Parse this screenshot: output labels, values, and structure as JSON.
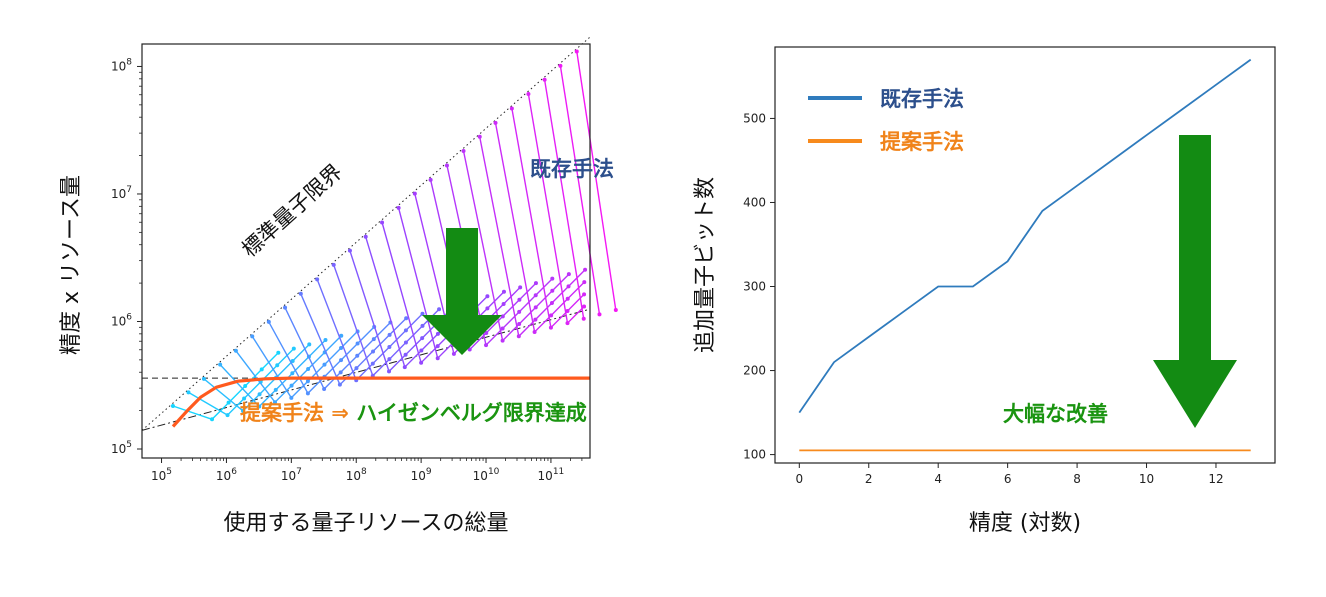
{
  "chart_data": [
    {
      "type": "line",
      "xlabel": "使用する量子リソースの総量",
      "ylabel": "精度 x リソース量",
      "xscale": "log",
      "yscale": "log",
      "xlim": [
        50000,
        400000000000
      ],
      "ylim": [
        85000,
        150000000
      ],
      "x_ticks": [
        100000,
        1000000,
        10000000,
        100000000,
        1000000000,
        10000000000,
        100000000000
      ],
      "x_tick_labels": [
        {
          "base": "10",
          "exp": "5"
        },
        {
          "base": "10",
          "exp": "6"
        },
        {
          "base": "10",
          "exp": "7"
        },
        {
          "base": "10",
          "exp": "8"
        },
        {
          "base": "10",
          "exp": "9"
        },
        {
          "base": "10",
          "exp": "10"
        },
        {
          "base": "10",
          "exp": "11"
        }
      ],
      "y_ticks": [
        100000,
        1000000,
        10000000,
        100000000
      ],
      "y_tick_labels": [
        {
          "base": "10",
          "exp": "5"
        },
        {
          "base": "10",
          "exp": "6"
        },
        {
          "base": "10",
          "exp": "7"
        },
        {
          "base": "10",
          "exp": "8"
        }
      ],
      "reference_lines": [
        {
          "style": "dotted",
          "x": [
            50000,
            400000000000
          ],
          "y": [
            140000,
            170000000
          ]
        },
        {
          "style": "dashdot",
          "x": [
            50000,
            400000000000
          ],
          "y": [
            140000,
            1250000
          ]
        },
        {
          "style": "dashed",
          "x": [
            50000,
            400000000000
          ],
          "y": [
            360000,
            360000
          ]
        }
      ],
      "series": [
        {
          "color": "#ff5a1e",
          "x": [
            150000,
            250000,
            400000,
            700000,
            1500000,
            4000000,
            10000000,
            100000000,
            1000000000,
            10000000000,
            100000000000,
            400000000000
          ],
          "y": [
            150000,
            200000,
            255000,
            305000,
            340000,
            355000,
            360000,
            360000,
            360000,
            360000,
            360000,
            360000
          ]
        }
      ],
      "existing_method_tip_x": [
        150000,
        260000,
        450000,
        800000,
        1400000,
        2500000,
        4500000,
        8000000,
        14000000,
        25000000,
        45000000,
        80000000,
        140000000,
        250000000,
        450000000,
        800000000,
        1400000000,
        2500000000,
        4500000000,
        8000000000,
        14000000000,
        25000000000,
        45000000000,
        80000000000,
        140000000000,
        250000000000
      ],
      "existing_method_colors": [
        "#17d5ff",
        "#9148ff",
        "#f418f4"
      ],
      "annotations": {
        "sql_label": "標準量子限界",
        "existing_label": "既存手法",
        "proposed_label": "提案手法 ⇒ ハイゼンベルグ限界達成"
      },
      "colors": {
        "existing_text": "#2c4f8c",
        "proposed_text": "#f0831a",
        "heisenberg_text": "#1a9410",
        "arrow": "#138b13"
      }
    },
    {
      "type": "line",
      "xlabel": "精度 (対数)",
      "ylabel": "追加量子ビット数",
      "xlim": [
        -0.7,
        13.7
      ],
      "ylim": [
        90,
        585
      ],
      "x_ticks": [
        0,
        2,
        4,
        6,
        8,
        10,
        12
      ],
      "y_ticks": [
        100,
        200,
        300,
        400,
        500
      ],
      "legend_position": "top-left",
      "series": [
        {
          "name": "既存手法",
          "color": "#2f7bbd",
          "x": [
            0,
            1,
            2,
            3,
            4,
            5,
            6,
            7,
            8,
            9,
            10,
            11,
            12,
            13
          ],
          "y": [
            150,
            210,
            240,
            270,
            300,
            300,
            330,
            390,
            420,
            450,
            480,
            510,
            540,
            570
          ]
        },
        {
          "name": "提案手法",
          "color": "#f78a1d",
          "x": [
            0,
            13
          ],
          "y": [
            105,
            105
          ]
        }
      ],
      "annotations": {
        "improvement_label": "大幅な改善"
      },
      "colors": {
        "legend_existing_text": "#2c4f8c",
        "legend_proposed_text": "#f0831a",
        "improvement_text": "#1a9410",
        "arrow": "#138b13"
      }
    }
  ]
}
